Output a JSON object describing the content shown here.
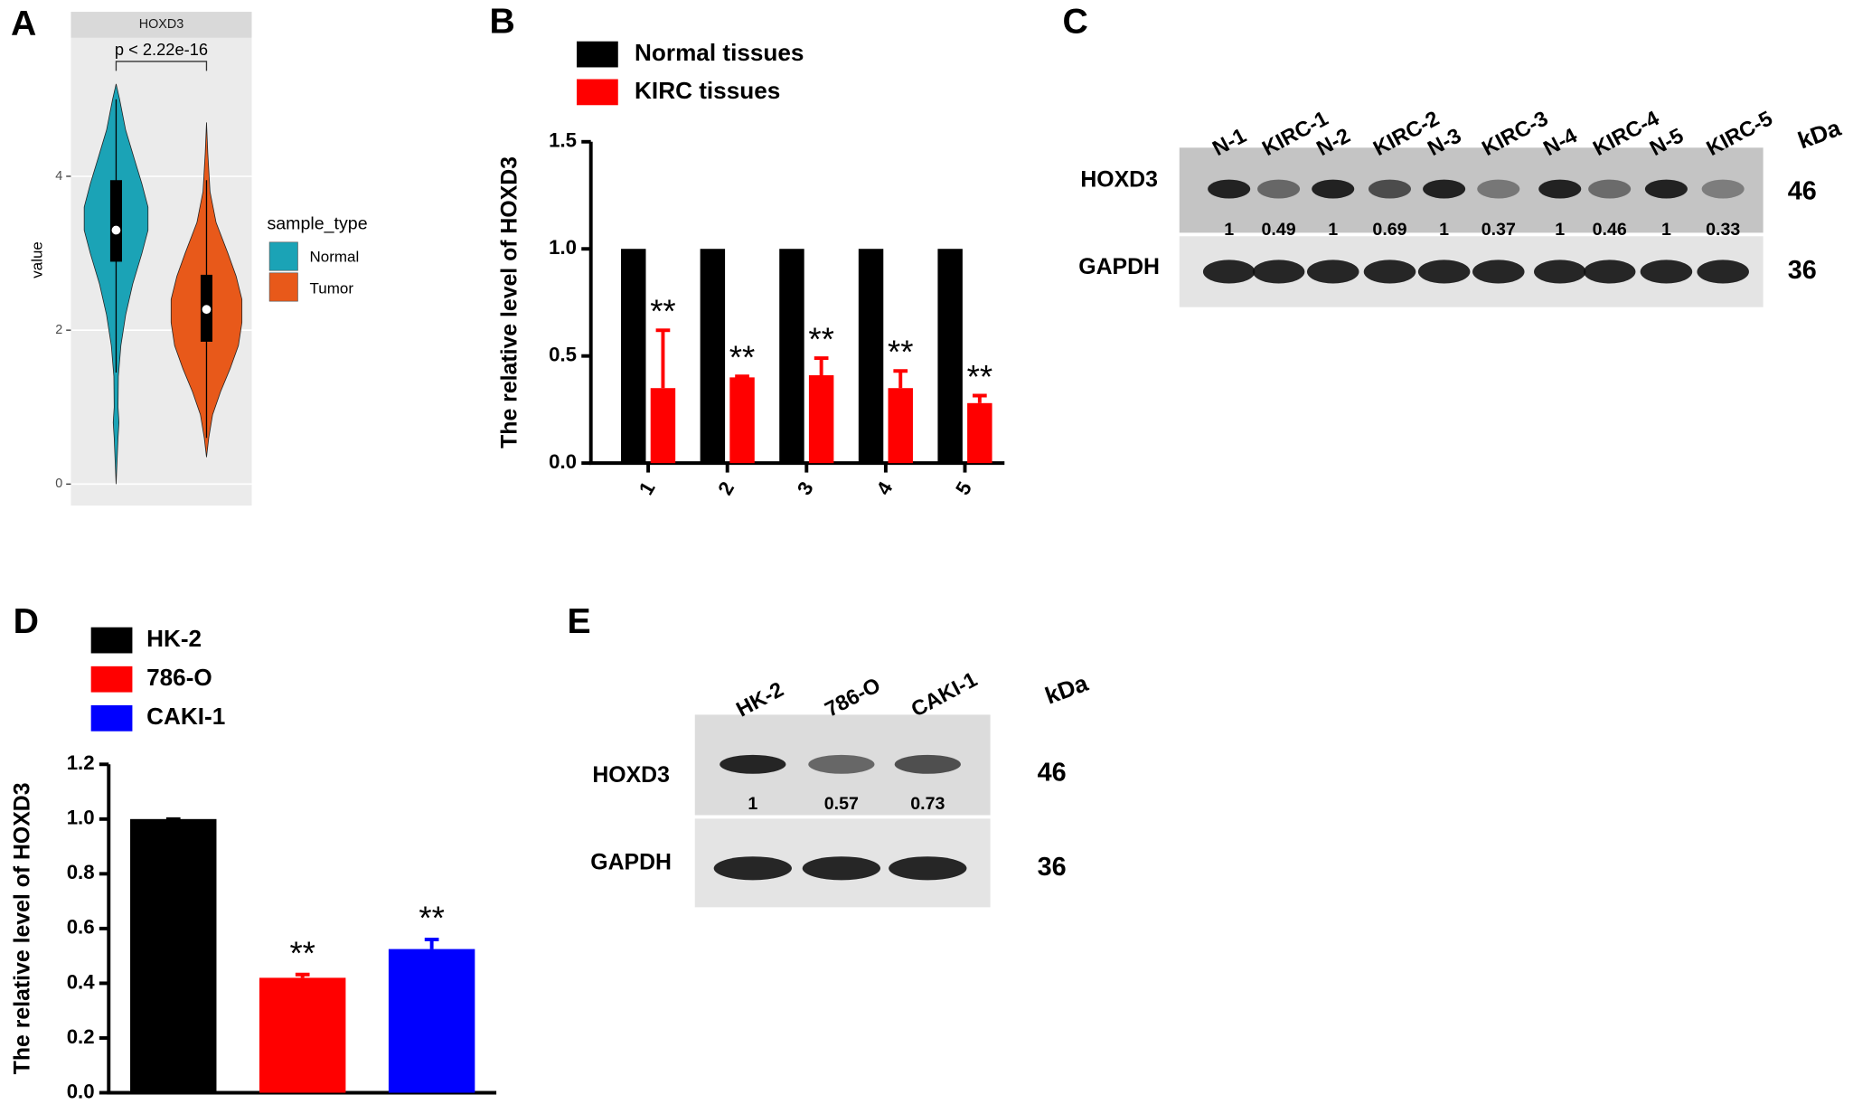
{
  "panel_labels": [
    "A",
    "B",
    "C",
    "D",
    "E"
  ],
  "chart_data": [
    {
      "type": "violin",
      "strip_title": "HOXD3",
      "annotation": "p < 2.22e-16",
      "ylabel": "value",
      "legend_title": "sample_type",
      "ylim": [
        -0.28,
        5.8
      ],
      "yticks": [
        0,
        2,
        4
      ],
      "grid": true,
      "series": [
        {
          "name": "Normal",
          "color": "#1BA3B6",
          "density_y": [
            0,
            0.3,
            0.6,
            0.8,
            1.0,
            1.4,
            1.8,
            2.2,
            2.6,
            3.0,
            3.3,
            3.6,
            3.9,
            4.2,
            4.6,
            5.0,
            5.2
          ],
          "density": [
            0,
            0.03,
            0.06,
            0.09,
            0.06,
            0.07,
            0.15,
            0.3,
            0.52,
            0.81,
            1,
            1,
            0.81,
            0.59,
            0.3,
            0.11,
            0
          ],
          "whiskers": [
            1.45,
            5.0
          ],
          "q1": 2.89,
          "median": 3.3,
          "q3": 3.95
        },
        {
          "name": "Tumor",
          "color": "#E8591A",
          "density_y": [
            0.35,
            0.6,
            0.9,
            1.2,
            1.5,
            1.8,
            2.1,
            2.4,
            2.7,
            3.0,
            3.4,
            3.8,
            4.3,
            4.7
          ],
          "density": [
            0,
            0.07,
            0.19,
            0.44,
            0.74,
            1,
            1.11,
            1.11,
            0.93,
            0.67,
            0.3,
            0.11,
            0.04,
            0
          ],
          "whiskers": [
            0.6,
            3.95
          ],
          "q1": 1.85,
          "median": 2.27,
          "q3": 2.72
        }
      ]
    },
    {
      "type": "bar",
      "ylabel": "The relative level of  HOXD3",
      "categories": [
        "1",
        "2",
        "3",
        "4",
        "5"
      ],
      "ylim": [
        0,
        1.5
      ],
      "yticks": [
        {
          "value": 0,
          "label": "0.0"
        },
        0.5,
        {
          "value": 1,
          "label": "1.0"
        },
        1.5
      ],
      "series": [
        {
          "name": "Normal tissues",
          "color": "#000000",
          "values": [
            1,
            1,
            1,
            1,
            1
          ]
        },
        {
          "name": "KIRC tissues",
          "color": "#FF0000",
          "values": [
            0.35,
            0.4,
            0.41,
            0.35,
            0.28
          ],
          "errors": [
            0.27,
            0.005,
            0.08,
            0.08,
            0.035
          ],
          "annotations": [
            "**",
            "**",
            "**",
            "**",
            "**"
          ]
        }
      ]
    },
    {
      "type": "bar",
      "ylabel": "The relative level of  HOXD3",
      "categories": [
        "HK-2",
        "786-O",
        "CAKI-1"
      ],
      "colors": [
        "#000000",
        "#FF0000",
        "#0000FF"
      ],
      "values": [
        1,
        0.42,
        0.525
      ],
      "errors": [
        0,
        0.012,
        0.035
      ],
      "annotations": [
        null,
        "**",
        "**"
      ],
      "ylim": [
        0,
        1.2
      ],
      "yticks": [
        {
          "value": 0,
          "label": "0.0"
        },
        0.2,
        0.4,
        0.6,
        0.8,
        {
          "value": 1,
          "label": "1.0"
        },
        1.2
      ]
    }
  ],
  "blots": [
    {
      "lanes": [
        "N-1",
        "KIRC-1",
        "N-2",
        "KIRC-2",
        "N-3",
        "KIRC-3",
        "N-4",
        "KIRC-4",
        "N-5",
        "KIRC-5"
      ],
      "rows": [
        "HOXD3",
        "GAPDH"
      ],
      "kda_label": "kDa",
      "kda": [
        46,
        36
      ],
      "quantification": [
        1,
        0.49,
        1,
        0.69,
        1,
        0.37,
        1,
        0.46,
        1,
        0.33
      ]
    },
    {
      "lanes": [
        "HK-2",
        "786-O",
        "CAKI-1"
      ],
      "rows": [
        "HOXD3",
        "GAPDH"
      ],
      "kda_label": "kDa",
      "kda": [
        46,
        36
      ],
      "quantification": [
        1,
        0.57,
        0.73
      ]
    }
  ]
}
